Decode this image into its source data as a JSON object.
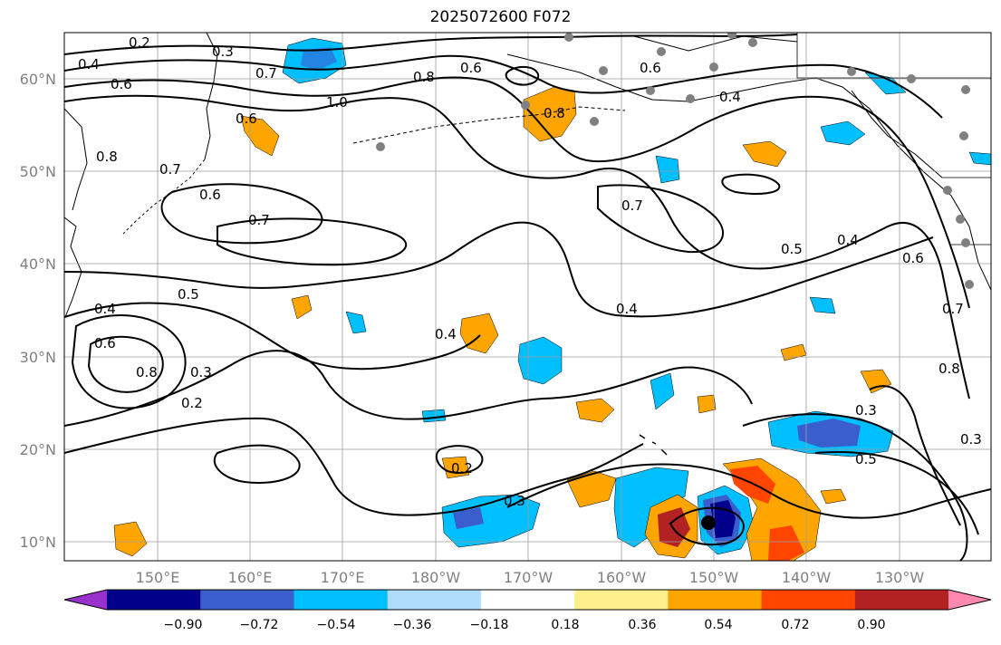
{
  "title": "2025072600 F072",
  "lat_labels": [
    "60°N",
    "50°N",
    "40°N",
    "30°N",
    "20°N",
    "10°N"
  ],
  "lon_labels": [
    "150°E",
    "160°E",
    "170°E",
    "180°W",
    "170°W",
    "160°W",
    "150°W",
    "140°W",
    "130°W"
  ],
  "colorbar": {
    "ticks": [
      "−0.90",
      "−0.72",
      "−0.54",
      "−0.36",
      "−0.18",
      "0.18",
      "0.36",
      "0.54",
      "0.72",
      "0.90"
    ],
    "colors": [
      "#9932cc",
      "#00008b",
      "#3a5fcd",
      "#00bfff",
      "#afdcfa",
      "#ffffff",
      "#fff08c",
      "#ffa500",
      "#ff4500",
      "#b22222",
      "#ff88b0"
    ]
  },
  "contour_labels": [
    "0.2",
    "0.3",
    "0.4",
    "0.5",
    "0.6",
    "0.7",
    "0.8",
    "1.0"
  ],
  "colors": {
    "land_outline": "#000000",
    "grid": "#9e9e9e",
    "contour": "#000000",
    "station_dot": "#808080",
    "center_marker": "#000000"
  }
}
